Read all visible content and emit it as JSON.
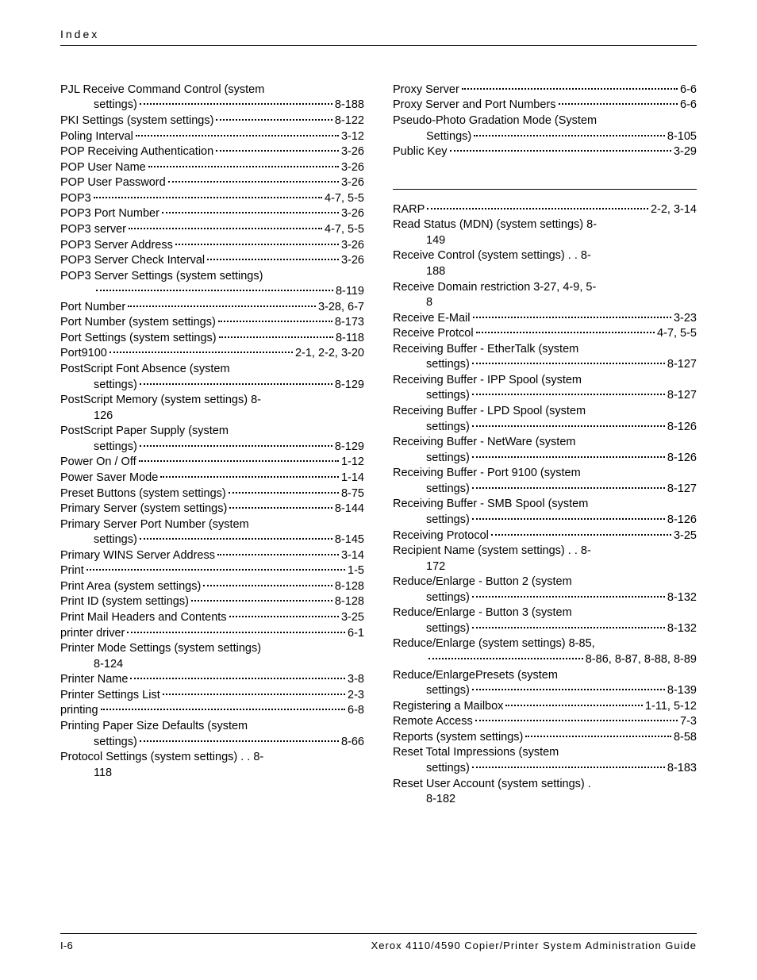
{
  "header": "Index",
  "footer": {
    "page": "I-6",
    "title": "Xerox 4110/4590 Copier/Printer System Administration Guide"
  },
  "left": [
    {
      "type": "wrap",
      "term": "PJL Receive Command Control (system",
      "cont": "settings)",
      "pg": "8-188"
    },
    {
      "type": "simple",
      "term": "PKI Settings (system settings)",
      "pg": "8-122"
    },
    {
      "type": "simple",
      "term": "Poling Interval",
      "pg": "3-12"
    },
    {
      "type": "simple",
      "term": "POP Receiving Authentication",
      "pg": "3-26"
    },
    {
      "type": "simple",
      "term": "POP User Name",
      "pg": "3-26"
    },
    {
      "type": "simple",
      "term": "POP User Password",
      "pg": "3-26"
    },
    {
      "type": "simple",
      "term": "POP3",
      "pg": "4-7, 5-5"
    },
    {
      "type": "simple",
      "term": "POP3 Port Number",
      "pg": "3-26"
    },
    {
      "type": "simple",
      "term": "POP3 server",
      "pg": "4-7, 5-5"
    },
    {
      "type": "simple",
      "term": "POP3 Server Address",
      "pg": "3-26"
    },
    {
      "type": "simple",
      "term": "POP3 Server Check Interval",
      "pg": "3-26"
    },
    {
      "type": "wrap",
      "term": "POP3 Server Settings (system settings)",
      "cont": "",
      "pg": "8-119"
    },
    {
      "type": "simple",
      "term": "Port Number",
      "pg": "3-28, 6-7"
    },
    {
      "type": "simple",
      "term": "Port Number (system settings)",
      "pg": "8-173"
    },
    {
      "type": "simple",
      "term": "Port Settings (system settings)",
      "pg": "8-118"
    },
    {
      "type": "simple",
      "term": "Port9100",
      "pg": "2-1, 2-2, 3-20"
    },
    {
      "type": "wrap",
      "term": "PostScript Font Absence (system",
      "cont": "settings)",
      "pg": "8-129"
    },
    {
      "type": "nolead",
      "term": "PostScript Memory (system settings)  8-",
      "cont": "126"
    },
    {
      "type": "wrap",
      "term": "PostScript Paper Supply (system",
      "cont": "settings)",
      "pg": "8-129"
    },
    {
      "type": "simple",
      "term": "Power On / Off",
      "pg": "1-12"
    },
    {
      "type": "simple",
      "term": "Power Saver Mode",
      "pg": "1-14"
    },
    {
      "type": "simple",
      "term": "Preset Buttons (system settings)",
      "pg": "8-75"
    },
    {
      "type": "simple",
      "term": "Primary Server (system settings)",
      "pg": "8-144"
    },
    {
      "type": "wrap",
      "term": "Primary Server Port Number (system",
      "cont": "settings)",
      "pg": "8-145"
    },
    {
      "type": "simple",
      "term": "Primary WINS Server Address",
      "pg": "3-14"
    },
    {
      "type": "simple",
      "term": "Print",
      "pg": "1-5"
    },
    {
      "type": "simple",
      "term": "Print Area (system settings)",
      "pg": "8-128"
    },
    {
      "type": "simple",
      "term": "Print ID (system settings)",
      "pg": "8-128"
    },
    {
      "type": "simple",
      "term": "Print Mail Headers and Contents",
      "pg": "3-25"
    },
    {
      "type": "simple",
      "term": "printer driver",
      "pg": "6-1"
    },
    {
      "type": "nolead",
      "term": "Printer Mode Settings (system settings)",
      "cont": "8-124"
    },
    {
      "type": "simple",
      "term": "Printer Name",
      "pg": "3-8"
    },
    {
      "type": "simple",
      "term": "Printer Settings List",
      "pg": "2-3"
    },
    {
      "type": "simple",
      "term": "printing",
      "pg": "6-8"
    },
    {
      "type": "wrap",
      "term": "Printing Paper Size Defaults (system",
      "cont": "settings)",
      "pg": "8-66"
    },
    {
      "type": "nolead",
      "term": "Protocol Settings (system settings)  . . 8-",
      "cont": "118"
    }
  ],
  "right_p": [
    {
      "type": "simple",
      "term": "Proxy Server",
      "pg": "6-6"
    },
    {
      "type": "simple",
      "term": "Proxy Server and Port Numbers",
      "pg": "6-6"
    },
    {
      "type": "wrap",
      "term": "Pseudo-Photo Gradation Mode (System",
      "cont": "Settings)",
      "pg": "8-105"
    },
    {
      "type": "simple",
      "term": "Public Key",
      "pg": "3-29"
    }
  ],
  "right_r": [
    {
      "type": "simple",
      "term": "RARP",
      "pg": "2-2, 3-14"
    },
    {
      "type": "nolead",
      "term": "Read Status (MDN) (system settings) 8-",
      "cont": "149"
    },
    {
      "type": "nolead",
      "term": "Receive Control (system settings)  . . 8-",
      "cont": "188"
    },
    {
      "type": "nolead",
      "term": "Receive Domain restriction 3-27, 4-9, 5-",
      "cont": "8"
    },
    {
      "type": "simple",
      "term": "Receive E-Mail",
      "pg": "3-23"
    },
    {
      "type": "simple",
      "term": "Receive Protcol",
      "pg": "4-7, 5-5"
    },
    {
      "type": "wrap",
      "term": "Receiving Buffer - EtherTalk (system",
      "cont": "settings)",
      "pg": "8-127"
    },
    {
      "type": "wrap",
      "term": "Receiving Buffer - IPP Spool (system",
      "cont": "settings)",
      "pg": "8-127"
    },
    {
      "type": "wrap",
      "term": "Receiving Buffer - LPD Spool (system",
      "cont": "settings)",
      "pg": "8-126"
    },
    {
      "type": "wrap",
      "term": "Receiving Buffer - NetWare (system",
      "cont": "settings)",
      "pg": "8-126"
    },
    {
      "type": "wrap",
      "term": "Receiving Buffer - Port 9100 (system",
      "cont": "settings)",
      "pg": "8-127"
    },
    {
      "type": "wrap",
      "term": "Receiving Buffer - SMB Spool (system",
      "cont": "settings)",
      "pg": "8-126"
    },
    {
      "type": "simple",
      "term": "Receiving Protocol",
      "pg": "3-25"
    },
    {
      "type": "nolead",
      "term": "Recipient Name (system settings)  . . 8-",
      "cont": "172"
    },
    {
      "type": "wrap",
      "term": "Reduce/Enlarge - Button 2 (system",
      "cont": "settings)",
      "pg": "8-132"
    },
    {
      "type": "wrap",
      "term": "Reduce/Enlarge - Button 3 (system",
      "cont": "settings)",
      "pg": "8-132"
    },
    {
      "type": "wrap",
      "term": "Reduce/Enlarge (system settings) 8-85,",
      "cont": "",
      "pg": "8-86, 8-87, 8-88, 8-89"
    },
    {
      "type": "wrap",
      "term": "Reduce/EnlargePresets (system",
      "cont": "settings)",
      "pg": "8-139"
    },
    {
      "type": "simple",
      "term": "Registering a Mailbox",
      "pg": "1-11, 5-12"
    },
    {
      "type": "simple",
      "term": "Remote Access",
      "pg": "7-3"
    },
    {
      "type": "simple",
      "term": "Reports (system settings)",
      "pg": "8-58"
    },
    {
      "type": "wrap",
      "term": "Reset Total Impressions (system",
      "cont": "settings)",
      "pg": "8-183"
    },
    {
      "type": "nolead",
      "term": "Reset User Account (system settings)  .",
      "cont": "8-182"
    }
  ]
}
